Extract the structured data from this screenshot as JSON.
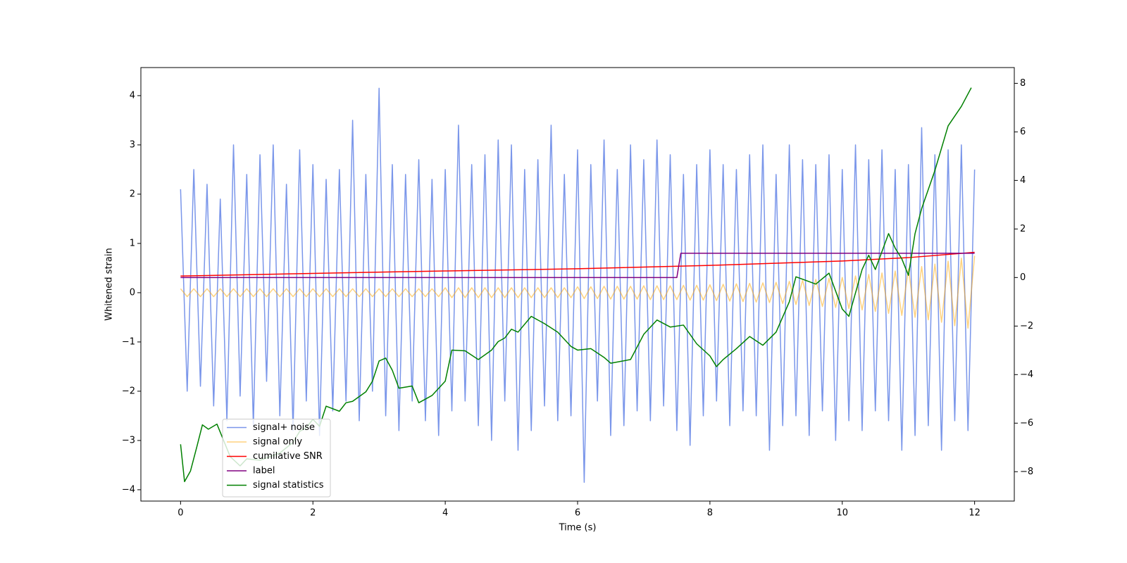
{
  "chart_data": {
    "type": "line",
    "xlabel": "Time (s)",
    "ylabel": "Whitened strain",
    "xlim": [
      -0.6,
      12.6
    ],
    "xticks": [
      0,
      2,
      4,
      6,
      8,
      10,
      12
    ],
    "ylim": [
      -4.23,
      4.57
    ],
    "yticks": [
      {
        "value": -4,
        "label": "−4"
      },
      {
        "value": -3,
        "label": "−3"
      },
      {
        "value": -2,
        "label": "−2"
      },
      {
        "value": -1,
        "label": "−1"
      },
      0,
      1,
      2,
      3,
      4
    ],
    "y2lim": [
      -9.21,
      8.65
    ],
    "y2ticks": [
      {
        "value": -8,
        "label": "−8"
      },
      {
        "value": -6,
        "label": "−6"
      },
      {
        "value": -4,
        "label": "−4"
      },
      {
        "value": -2,
        "label": "−2"
      },
      0,
      2,
      4,
      6,
      8
    ],
    "legend": "lower left",
    "x": [
      0,
      0.1,
      0.2,
      0.3,
      0.4,
      0.5,
      0.6,
      0.7,
      0.8,
      0.9,
      1,
      1.1,
      1.2,
      1.3,
      1.4,
      1.5,
      1.6,
      1.7,
      1.8,
      1.9,
      2,
      2.1,
      2.2,
      2.3,
      2.4,
      2.5,
      2.6,
      2.7,
      2.8,
      2.9,
      3,
      3.1,
      3.2,
      3.3,
      3.4,
      3.5,
      3.6,
      3.7,
      3.8,
      3.9,
      4,
      4.1,
      4.2,
      4.3,
      4.4,
      4.5,
      4.6,
      4.7,
      4.8,
      4.9,
      5,
      5.1,
      5.2,
      5.3,
      5.4,
      5.5,
      5.6,
      5.7,
      5.8,
      5.9,
      6,
      6.1,
      6.2,
      6.3,
      6.4,
      6.5,
      6.6,
      6.7,
      6.8,
      6.9,
      7,
      7.1,
      7.2,
      7.3,
      7.4,
      7.5,
      7.6,
      7.7,
      7.8,
      7.9,
      8,
      8.1,
      8.2,
      8.3,
      8.4,
      8.5,
      8.6,
      8.7,
      8.8,
      8.9,
      9,
      9.1,
      9.2,
      9.3,
      9.4,
      9.5,
      9.6,
      9.7,
      9.8,
      9.9,
      10,
      10.1,
      10.2,
      10.3,
      10.4,
      10.5,
      10.6,
      10.7,
      10.8,
      10.9,
      11,
      11.1,
      11.2,
      11.3,
      11.4,
      11.5,
      11.6,
      11.7,
      11.8,
      11.9,
      12
    ],
    "series": [
      {
        "name": "signal+ noise",
        "color": "#4169e1",
        "alpha": 0.7,
        "values": [
          2.1,
          -2.0,
          2.5,
          -1.9,
          2.2,
          -2.3,
          1.9,
          -2.6,
          3.0,
          -2.1,
          2.4,
          -2.7,
          2.8,
          -1.8,
          3.0,
          -2.5,
          2.2,
          -2.8,
          2.9,
          -2.2,
          2.6,
          -2.9,
          2.3,
          -2.4,
          2.5,
          -2.2,
          3.5,
          -2.6,
          2.4,
          -2.0,
          4.15,
          -2.5,
          2.6,
          -2.8,
          2.4,
          -2.2,
          2.7,
          -2.6,
          2.3,
          -2.9,
          2.5,
          -2.4,
          3.4,
          -2.2,
          2.6,
          -2.7,
          2.8,
          -3.0,
          3.1,
          -2.2,
          3.0,
          -3.2,
          2.5,
          -2.8,
          2.7,
          -2.3,
          3.4,
          -2.6,
          2.4,
          -2.5,
          2.9,
          -3.85,
          2.6,
          -2.2,
          3.1,
          -2.9,
          2.5,
          -2.7,
          3.0,
          -2.4,
          2.7,
          -2.6,
          3.1,
          -2.3,
          2.8,
          -2.8,
          2.4,
          -3.1,
          2.6,
          -2.5,
          2.9,
          -2.2,
          2.6,
          -2.7,
          2.5,
          -2.4,
          2.8,
          -2.5,
          3.0,
          -3.2,
          2.4,
          -2.7,
          3.0,
          -2.5,
          2.7,
          -2.9,
          2.6,
          -2.4,
          2.8,
          -3.0,
          2.5,
          -2.6,
          3.0,
          -2.8,
          2.7,
          -2.4,
          2.9,
          -2.6,
          2.5,
          -3.2,
          2.6,
          -2.9,
          3.35,
          -2.7,
          2.8,
          -3.2,
          2.9,
          -2.6,
          3.0,
          -2.8,
          2.5
        ]
      },
      {
        "name": "signal only",
        "color": "#ffa500",
        "alpha": 0.5,
        "values": [
          0.08,
          -0.08,
          0.08,
          -0.08,
          0.08,
          -0.08,
          0.08,
          -0.08,
          0.08,
          -0.08,
          0.08,
          -0.08,
          0.08,
          -0.08,
          0.08,
          -0.08,
          0.08,
          -0.08,
          0.08,
          -0.08,
          0.08,
          -0.08,
          0.08,
          -0.08,
          0.08,
          -0.08,
          0.08,
          -0.08,
          0.08,
          -0.08,
          0.08,
          -0.08,
          0.08,
          -0.08,
          0.08,
          -0.08,
          0.08,
          -0.08,
          0.08,
          -0.08,
          0.1,
          -0.1,
          0.1,
          -0.1,
          0.1,
          -0.1,
          0.1,
          -0.1,
          0.1,
          -0.1,
          0.1,
          -0.1,
          0.1,
          -0.1,
          0.1,
          -0.1,
          0.1,
          -0.1,
          0.1,
          -0.1,
          0.12,
          -0.12,
          0.12,
          -0.12,
          0.13,
          -0.13,
          0.13,
          -0.13,
          0.13,
          -0.13,
          0.14,
          -0.14,
          0.14,
          -0.14,
          0.14,
          -0.14,
          0.15,
          -0.15,
          0.15,
          -0.15,
          0.16,
          -0.16,
          0.17,
          -0.17,
          0.18,
          -0.18,
          0.19,
          -0.19,
          0.2,
          -0.2,
          0.21,
          -0.22,
          0.23,
          -0.24,
          0.25,
          -0.26,
          0.27,
          -0.28,
          0.29,
          -0.3,
          0.31,
          -0.32,
          0.34,
          -0.35,
          0.37,
          -0.38,
          0.4,
          -0.42,
          0.44,
          -0.46,
          0.48,
          -0.5,
          0.53,
          -0.55,
          0.58,
          -0.6,
          0.64,
          -0.67,
          0.7,
          -0.72,
          0.75
        ]
      },
      {
        "name": "cumilative SNR",
        "color": "#ff0000",
        "alpha": 1,
        "axis": "y2",
        "x": [
          0,
          2,
          4,
          6,
          8,
          10,
          11,
          12
        ],
        "values": [
          0.06,
          0.17,
          0.27,
          0.36,
          0.5,
          0.68,
          0.82,
          1.04
        ]
      },
      {
        "name": "label",
        "color": "#800080",
        "alpha": 1,
        "axis": "y2",
        "x": [
          0,
          7.5,
          7.56,
          12
        ],
        "values": [
          0,
          0,
          1,
          1
        ]
      },
      {
        "name": "signal statistics",
        "color": "#008000",
        "alpha": 1,
        "axis": "y2",
        "x": [
          0,
          0.06,
          0.15,
          0.25,
          0.33,
          0.42,
          0.55,
          0.75,
          0.9,
          1.0,
          1.2,
          1.5,
          1.7,
          1.8,
          1.9,
          2.0,
          2.1,
          2.2,
          2.4,
          2.5,
          2.6,
          2.8,
          2.9,
          3.0,
          3.1,
          3.2,
          3.3,
          3.5,
          3.6,
          3.8,
          4.0,
          4.1,
          4.3,
          4.5,
          4.7,
          4.8,
          4.9,
          5.0,
          5.1,
          5.3,
          5.5,
          5.7,
          5.9,
          6.0,
          6.2,
          6.4,
          6.5,
          6.8,
          7.0,
          7.2,
          7.4,
          7.6,
          7.8,
          8.0,
          8.1,
          8.2,
          8.4,
          8.6,
          8.8,
          9.0,
          9.2,
          9.3,
          9.6,
          9.8,
          10.0,
          10.1,
          10.3,
          10.4,
          10.5,
          10.7,
          10.8,
          10.9,
          11.0,
          11.1,
          11.2,
          11.4,
          11.6,
          11.8,
          11.95
        ],
        "values": [
          -6.87,
          -8.41,
          -7.97,
          -6.93,
          -6.07,
          -6.25,
          -6.04,
          -7.38,
          -7.76,
          -7.47,
          -7.53,
          -7.23,
          -6.79,
          -6.34,
          -6.19,
          -5.84,
          -6.13,
          -5.3,
          -5.51,
          -5.16,
          -5.1,
          -4.71,
          -4.27,
          -3.44,
          -3.32,
          -3.82,
          -4.56,
          -4.47,
          -5.16,
          -4.86,
          -4.27,
          -2.99,
          -3.02,
          -3.38,
          -2.99,
          -2.64,
          -2.49,
          -2.13,
          -2.25,
          -1.6,
          -1.9,
          -2.25,
          -2.84,
          -2.99,
          -2.93,
          -3.29,
          -3.53,
          -3.38,
          -2.34,
          -1.75,
          -2.04,
          -1.96,
          -2.73,
          -3.23,
          -3.67,
          -3.38,
          -2.93,
          -2.43,
          -2.79,
          -2.25,
          -1.0,
          0.03,
          -0.27,
          0.18,
          -1.3,
          -1.6,
          0.33,
          0.92,
          0.33,
          1.81,
          1.21,
          0.77,
          0.09,
          1.81,
          2.84,
          4.41,
          6.25,
          7.05,
          7.82
        ]
      }
    ]
  }
}
